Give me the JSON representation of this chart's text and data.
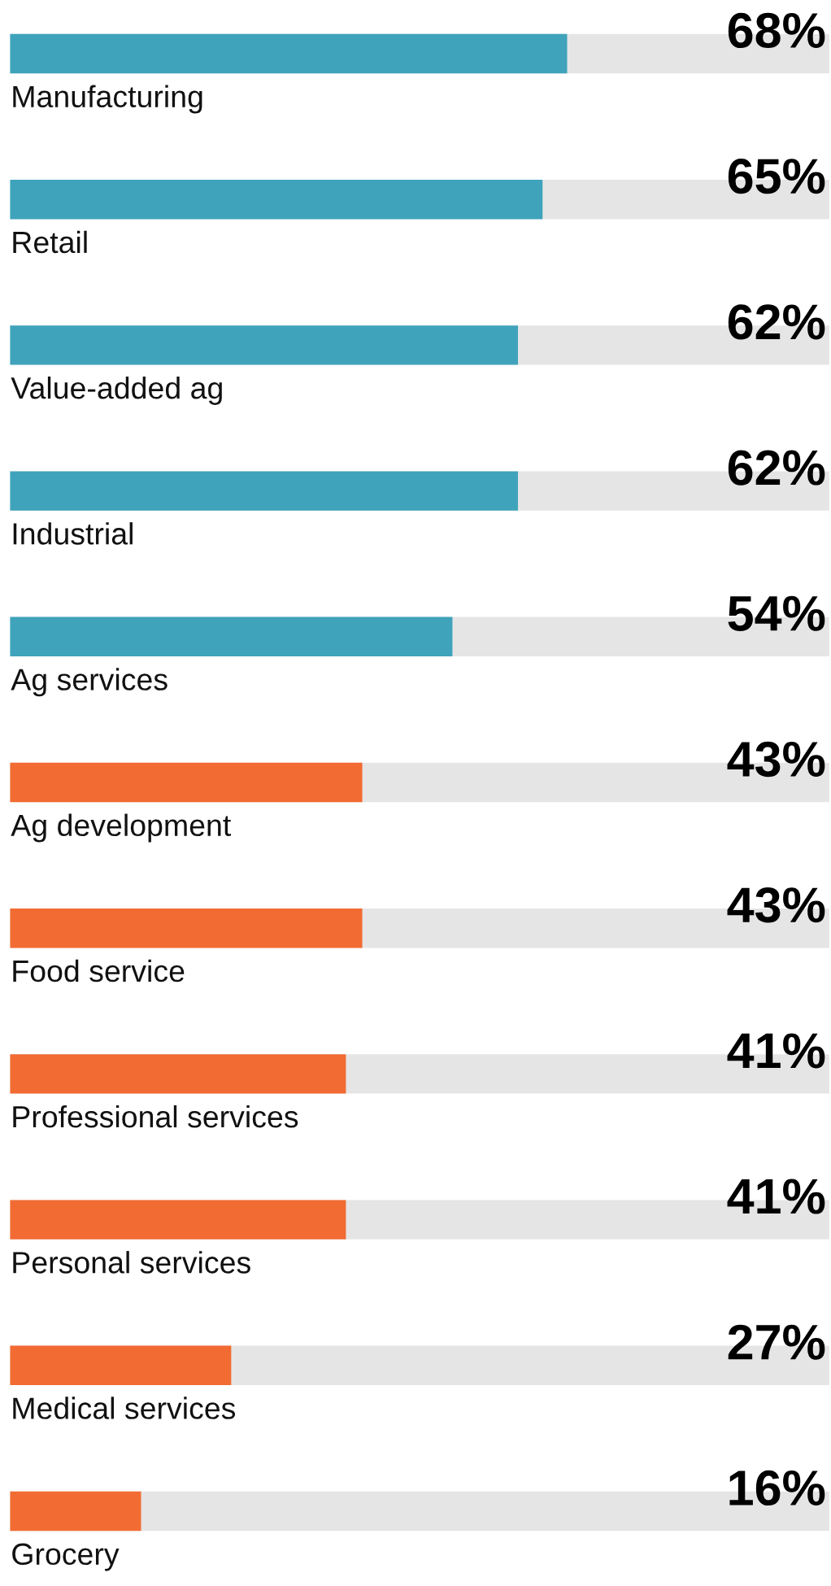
{
  "chart_data": {
    "type": "bar",
    "orientation": "horizontal",
    "categories": [
      "Manufacturing",
      "Retail",
      "Value-added ag",
      "Industrial",
      "Ag services",
      "Ag development",
      "Food service",
      "Professional services",
      "Personal services",
      "Medical services",
      "Grocery"
    ],
    "values": [
      68,
      65,
      62,
      62,
      54,
      43,
      43,
      41,
      41,
      27,
      16
    ],
    "colors": [
      "#3fa3bb",
      "#3fa3bb",
      "#3fa3bb",
      "#3fa3bb",
      "#3fa3bb",
      "#f26b33",
      "#f26b33",
      "#f26b33",
      "#f26b33",
      "#f26b33",
      "#f26b33"
    ],
    "value_labels": [
      "68%",
      "65%",
      "62%",
      "62%",
      "54%",
      "43%",
      "43%",
      "41%",
      "41%",
      "27%",
      "16%"
    ],
    "xlim": [
      0,
      100
    ]
  }
}
